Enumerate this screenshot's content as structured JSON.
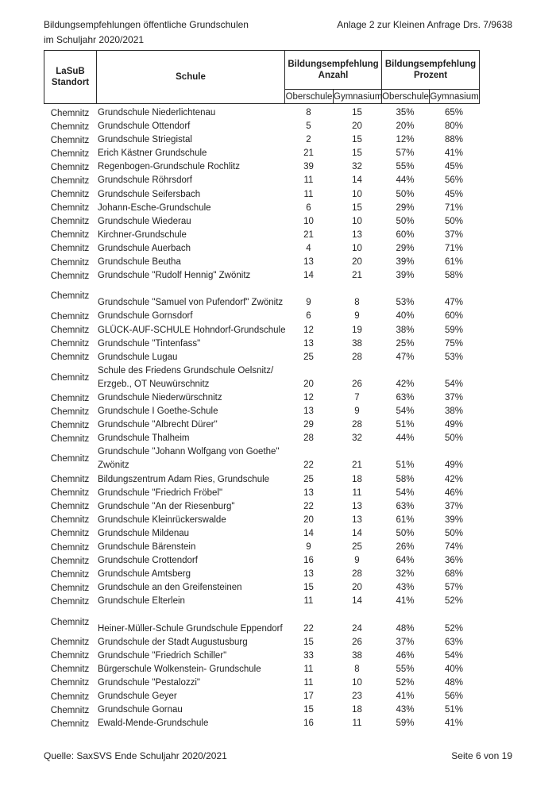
{
  "page": {
    "title_line1": "Bildungsempfehlungen öffentliche Grundschulen",
    "title_line2": "im Schuljahr 2020/2021",
    "annotation": "Anlage 2 zur Kleinen Anfrage Drs. 7/9638",
    "footer_source": "Quelle: SaxSVS Ende Schuljahr 2020/2021",
    "footer_page": "Seite 6 von 19"
  },
  "colors": {
    "text": "#1f1f1f",
    "border": "#2a2a2a",
    "background": "#ffffff"
  },
  "table": {
    "header": {
      "standort_line1": "LaSuB",
      "standort_line2": "Standort",
      "schule": "Schule",
      "anzahl_line1": "Bildungsempfehlung",
      "anzahl_line2": "Anzahl",
      "prozent_line1": "Bildungsempfehlung",
      "prozent_line2": "Prozent",
      "sub": [
        "Oberschule",
        "Gymnasium",
        "Oberschule",
        "Gymnasium"
      ]
    },
    "rows": [
      {
        "standort": "Chemnitz",
        "schule": [
          "Grundschule Niederlichtenau"
        ],
        "werte": [
          "8",
          "15",
          "35%",
          "65%"
        ]
      },
      {
        "standort": "Chemnitz",
        "schule": [
          "Grundschule Ottendorf"
        ],
        "werte": [
          "5",
          "20",
          "20%",
          "80%"
        ]
      },
      {
        "standort": "Chemnitz",
        "schule": [
          "Grundschule Striegistal"
        ],
        "werte": [
          "2",
          "15",
          "12%",
          "88%"
        ]
      },
      {
        "standort": "Chemnitz",
        "schule": [
          "Erich Kästner Grundschule"
        ],
        "werte": [
          "21",
          "15",
          "57%",
          "41%"
        ]
      },
      {
        "standort": "Chemnitz",
        "schule": [
          "Regenbogen-Grundschule Rochlitz"
        ],
        "werte": [
          "39",
          "32",
          "55%",
          "45%"
        ]
      },
      {
        "standort": "Chemnitz",
        "schule": [
          "Grundschule Röhrsdorf"
        ],
        "werte": [
          "11",
          "14",
          "44%",
          "56%"
        ]
      },
      {
        "standort": "Chemnitz",
        "schule": [
          "Grundschule Seifersbach"
        ],
        "werte": [
          "11",
          "10",
          "50%",
          "45%"
        ]
      },
      {
        "standort": "Chemnitz",
        "schule": [
          "Johann-Esche-Grundschule"
        ],
        "werte": [
          "6",
          "15",
          "29%",
          "71%"
        ]
      },
      {
        "standort": "Chemnitz",
        "schule": [
          "Grundschule Wiederau"
        ],
        "werte": [
          "10",
          "10",
          "50%",
          "50%"
        ]
      },
      {
        "standort": "Chemnitz",
        "schule": [
          "Kirchner-Grundschule"
        ],
        "werte": [
          "21",
          "13",
          "60%",
          "37%"
        ]
      },
      {
        "standort": "Chemnitz",
        "schule": [
          "Grundschule Auerbach"
        ],
        "werte": [
          "4",
          "10",
          "29%",
          "71%"
        ]
      },
      {
        "standort": "Chemnitz",
        "schule": [
          "Grundschule Beutha"
        ],
        "werte": [
          "13",
          "20",
          "39%",
          "61%"
        ]
      },
      {
        "standort": "Chemnitz",
        "schule": [
          "Grundschule \"Rudolf Hennig\" Zwönitz"
        ],
        "werte": [
          "14",
          "21",
          "39%",
          "58%"
        ]
      },
      {
        "standort": "Chemnitz",
        "schule": [
          "",
          "Grundschule \"Samuel von Pufendorf\" Zwönitz"
        ],
        "werte": [
          "9",
          "8",
          "53%",
          "47%"
        ]
      },
      {
        "standort": "Chemnitz",
        "schule": [
          "Grundschule Gornsdorf"
        ],
        "werte": [
          "6",
          "9",
          "40%",
          "60%"
        ]
      },
      {
        "standort": "Chemnitz",
        "schule": [
          "GLÜCK-AUF-SCHULE Hohndorf-Grundschule"
        ],
        "werte": [
          "12",
          "19",
          "38%",
          "59%"
        ]
      },
      {
        "standort": "Chemnitz",
        "schule": [
          "Grundschule \"Tintenfass\""
        ],
        "werte": [
          "13",
          "38",
          "25%",
          "75%"
        ]
      },
      {
        "standort": "Chemnitz",
        "schule": [
          "Grundschule Lugau"
        ],
        "werte": [
          "25",
          "28",
          "47%",
          "53%"
        ]
      },
      {
        "standort": "Chemnitz",
        "schule": [
          "Schule des Friedens Grundschule Oelsnitz/",
          "Erzgeb., OT Neuwürschnitz"
        ],
        "werte": [
          "20",
          "26",
          "42%",
          "54%"
        ]
      },
      {
        "standort": "Chemnitz",
        "schule": [
          "Grundschule Niederwürschnitz"
        ],
        "werte": [
          "12",
          "7",
          "63%",
          "37%"
        ]
      },
      {
        "standort": "Chemnitz",
        "schule": [
          "Grundschule I Goethe-Schule"
        ],
        "werte": [
          "13",
          "9",
          "54%",
          "38%"
        ]
      },
      {
        "standort": "Chemnitz",
        "schule": [
          "Grundschule \"Albrecht Dürer\""
        ],
        "werte": [
          "29",
          "28",
          "51%",
          "49%"
        ]
      },
      {
        "standort": "Chemnitz",
        "schule": [
          "Grundschule Thalheim"
        ],
        "werte": [
          "28",
          "32",
          "44%",
          "50%"
        ]
      },
      {
        "standort": "Chemnitz",
        "schule": [
          "Grundschule \"Johann Wolfgang von Goethe\"",
          "Zwönitz"
        ],
        "werte": [
          "22",
          "21",
          "51%",
          "49%"
        ]
      },
      {
        "standort": "Chemnitz",
        "schule": [
          "Bildungszentrum Adam Ries, Grundschule"
        ],
        "werte": [
          "25",
          "18",
          "58%",
          "42%"
        ]
      },
      {
        "standort": "Chemnitz",
        "schule": [
          "Grundschule \"Friedrich Fröbel\""
        ],
        "werte": [
          "13",
          "11",
          "54%",
          "46%"
        ]
      },
      {
        "standort": "Chemnitz",
        "schule": [
          "Grundschule \"An der Riesenburg\""
        ],
        "werte": [
          "22",
          "13",
          "63%",
          "37%"
        ]
      },
      {
        "standort": "Chemnitz",
        "schule": [
          "Grundschule Kleinrückerswalde"
        ],
        "werte": [
          "20",
          "13",
          "61%",
          "39%"
        ]
      },
      {
        "standort": "Chemnitz",
        "schule": [
          "Grundschule Mildenau"
        ],
        "werte": [
          "14",
          "14",
          "50%",
          "50%"
        ]
      },
      {
        "standort": "Chemnitz",
        "schule": [
          "Grundschule Bärenstein"
        ],
        "werte": [
          "9",
          "25",
          "26%",
          "74%"
        ]
      },
      {
        "standort": "Chemnitz",
        "schule": [
          "Grundschule Crottendorf"
        ],
        "werte": [
          "16",
          "9",
          "64%",
          "36%"
        ]
      },
      {
        "standort": "Chemnitz",
        "schule": [
          "Grundschule Amtsberg"
        ],
        "werte": [
          "13",
          "28",
          "32%",
          "68%"
        ]
      },
      {
        "standort": "Chemnitz",
        "schule": [
          "Grundschule an den Greifensteinen"
        ],
        "werte": [
          "15",
          "20",
          "43%",
          "57%"
        ]
      },
      {
        "standort": "Chemnitz",
        "schule": [
          "Grundschule Elterlein"
        ],
        "werte": [
          "11",
          "14",
          "41%",
          "52%"
        ]
      },
      {
        "standort": "Chemnitz",
        "schule": [
          "",
          "Heiner-Müller-Schule Grundschule Eppendorf"
        ],
        "werte": [
          "22",
          "24",
          "48%",
          "52%"
        ]
      },
      {
        "standort": "Chemnitz",
        "schule": [
          "Grundschule der Stadt Augustusburg"
        ],
        "werte": [
          "15",
          "26",
          "37%",
          "63%"
        ]
      },
      {
        "standort": "Chemnitz",
        "schule": [
          "Grundschule \"Friedrich Schiller\""
        ],
        "werte": [
          "33",
          "38",
          "46%",
          "54%"
        ]
      },
      {
        "standort": "Chemnitz",
        "schule": [
          "Bürgerschule Wolkenstein- Grundschule"
        ],
        "werte": [
          "11",
          "8",
          "55%",
          "40%"
        ]
      },
      {
        "standort": "Chemnitz",
        "schule": [
          "Grundschule \"Pestalozzi\""
        ],
        "werte": [
          "11",
          "10",
          "52%",
          "48%"
        ]
      },
      {
        "standort": "Chemnitz",
        "schule": [
          "Grundschule Geyer"
        ],
        "werte": [
          "17",
          "23",
          "41%",
          "56%"
        ]
      },
      {
        "standort": "Chemnitz",
        "schule": [
          "Grundschule Gornau"
        ],
        "werte": [
          "15",
          "18",
          "43%",
          "51%"
        ]
      },
      {
        "standort": "Chemnitz",
        "schule": [
          "Ewald-Mende-Grundschule"
        ],
        "werte": [
          "16",
          "11",
          "59%",
          "41%"
        ]
      }
    ]
  }
}
